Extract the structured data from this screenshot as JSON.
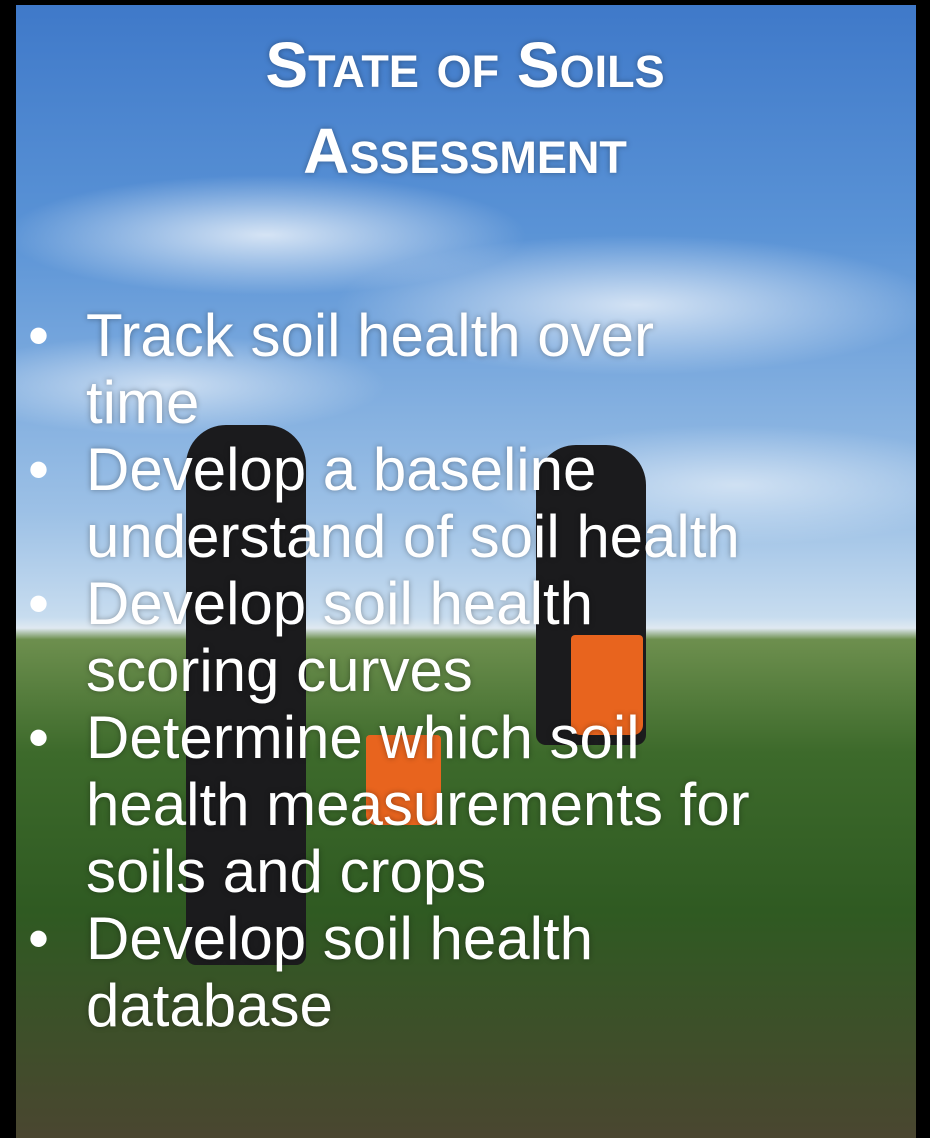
{
  "title": "State of Soils Assessment",
  "bullets": [
    [
      "Track soil health over",
      "time"
    ],
    [
      "Develop a baseline",
      "understand of soil health"
    ],
    [
      "Develop soil health",
      "scoring curves"
    ],
    [
      "Determine which soil",
      "health measurements for",
      "soils and crops"
    ],
    [
      "Develop soil health",
      "database"
    ]
  ]
}
